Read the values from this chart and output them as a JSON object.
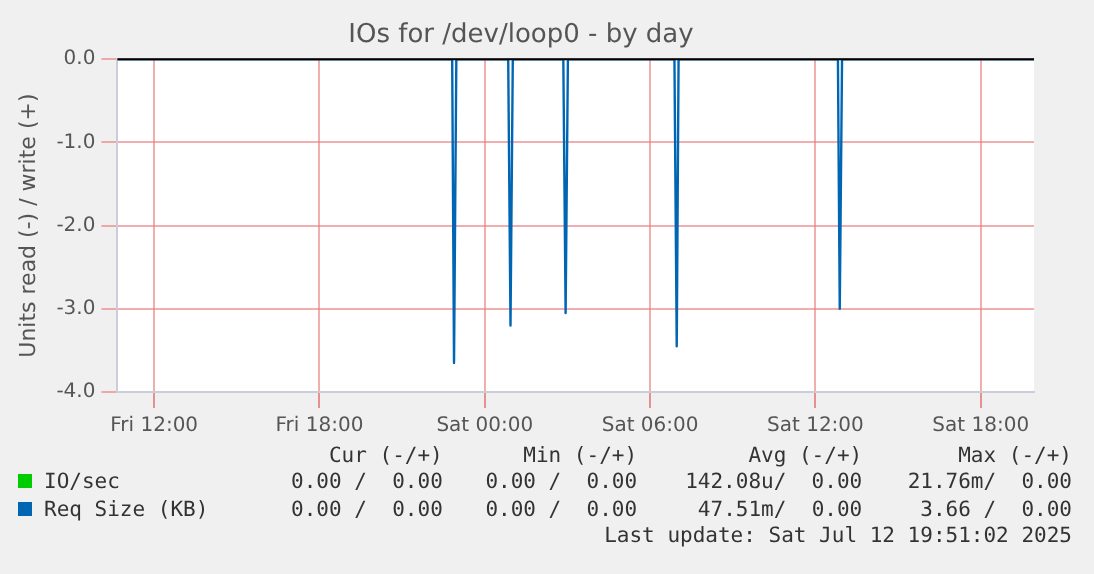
{
  "chart_data": {
    "type": "line",
    "title": "IOs for /dev/loop0 - by day",
    "ylabel": "Units read (-) / write (+)",
    "x": [
      "2025-07-11T10:40",
      "2025-07-11T22:49",
      "2025-07-11T22:53",
      "2025-07-11T22:58",
      "2025-07-12T00:51",
      "2025-07-12T00:56",
      "2025-07-12T01:01",
      "2025-07-12T02:51",
      "2025-07-12T02:56",
      "2025-07-12T03:01",
      "2025-07-12T06:53",
      "2025-07-12T06:58",
      "2025-07-12T07:02",
      "2025-07-12T12:49",
      "2025-07-12T12:53",
      "2025-07-12T12:58",
      "2025-07-12T19:56"
    ],
    "series": [
      {
        "name": "IO/sec",
        "color": "#00cc00",
        "values": [
          null,
          null,
          null,
          null,
          null,
          null,
          null,
          null,
          null,
          null,
          null,
          null,
          null,
          null,
          null,
          null,
          null
        ]
      },
      {
        "name": "Req Size (KB)",
        "color": "#0066b3",
        "values": [
          0,
          0,
          -3.65,
          0,
          0,
          -3.2,
          0,
          0,
          -3.05,
          0,
          0,
          -3.45,
          0,
          0,
          -3.0,
          0,
          0
        ]
      }
    ],
    "xlim": [
      "2025-07-11T10:40",
      "2025-07-12T19:56"
    ],
    "xticks": [
      {
        "value": "2025-07-11T12:00",
        "label": "Fri 12:00"
      },
      {
        "value": "2025-07-11T18:00",
        "label": "Fri 18:00"
      },
      {
        "value": "2025-07-12T00:00",
        "label": "Sat 00:00"
      },
      {
        "value": "2025-07-12T06:00",
        "label": "Sat 06:00"
      },
      {
        "value": "2025-07-12T12:00",
        "label": "Sat 12:00"
      },
      {
        "value": "2025-07-12T18:00",
        "label": "Sat 18:00"
      }
    ],
    "ylim": [
      -4,
      0
    ],
    "yticks": [
      {
        "value": 0,
        "label": "0.0"
      },
      {
        "value": -1,
        "label": "-1.0"
      },
      {
        "value": -2,
        "label": "-2.0"
      },
      {
        "value": -3,
        "label": "-3.0"
      },
      {
        "value": -4,
        "label": "-4.0"
      }
    ],
    "grid": true,
    "legend": "bottom left",
    "marker": "none",
    "line_style": "solid",
    "annotations": [
      "Cur (-/+)",
      "Min (-/+)",
      "Avg (-/+)",
      "Max (-/+)",
      "0.00 /  0.00",
      "0.00 /  0.00",
      "142.08u/  0.00",
      "21.76m/  0.00",
      "0.00 /  0.00",
      "0.00 /  0.00",
      "47.51m/  0.00",
      "3.66 /  0.00",
      "Last update: Sat Jul 12 19:51:02 2025"
    ]
  }
}
